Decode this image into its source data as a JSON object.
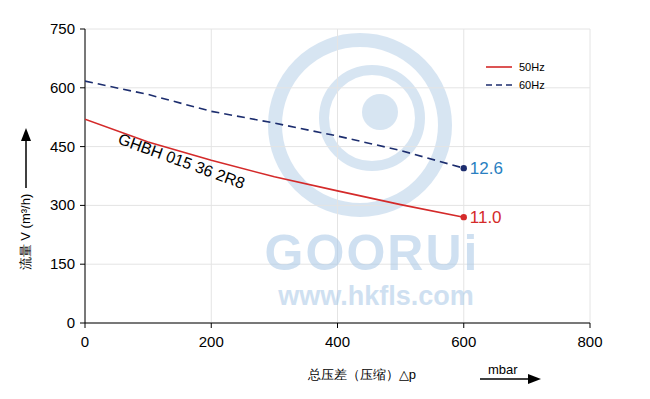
{
  "chart_data": {
    "type": "line",
    "xlabel": "总压差（压缩）△p",
    "xunit": "mbar",
    "ylabel": "流量 V (m³/h)",
    "x": [
      0,
      100,
      200,
      300,
      400,
      500,
      600
    ],
    "series": [
      {
        "name": "50Hz",
        "color": "#d42a2a",
        "line_style": "solid",
        "marker": "end",
        "values": [
          520,
          462,
          415,
          373,
          337,
          302,
          270
        ]
      },
      {
        "name": "60Hz",
        "color": "#1c2d6e",
        "line_style": "dashed",
        "marker": "end",
        "values": [
          617,
          583,
          540,
          510,
          477,
          440,
          395
        ]
      }
    ],
    "xlim": [
      0,
      800
    ],
    "ylim": [
      0,
      750
    ],
    "xticks": [
      0,
      200,
      400,
      600,
      800
    ],
    "yticks": [
      0,
      150,
      300,
      450,
      600,
      750
    ],
    "grid": true,
    "legend": "upper right",
    "annotations": [
      {
        "text": "GHBH 015 36 2R8",
        "x": 150,
        "y": 400,
        "color": "#000000"
      },
      {
        "text": "12.6",
        "x": 600,
        "y": 395,
        "color": "#2a7fc1"
      },
      {
        "text": "11.0",
        "x": 600,
        "y": 270,
        "color": "#d42a2a"
      }
    ],
    "watermark": {
      "logo": "GOORUi",
      "url": "www.hkfls.com"
    }
  }
}
